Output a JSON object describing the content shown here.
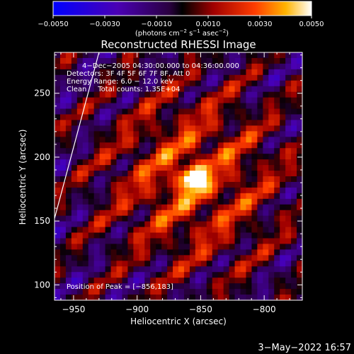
{
  "chart_data": {
    "type": "heatmap",
    "title": "Reconstructed RHESSI Image",
    "xlabel": "Heliocentric X (arcsec)",
    "ylabel": "Heliocentric Y (arcsec)",
    "xlim": [
      -965,
      -770
    ],
    "ylim": [
      88,
      282
    ],
    "x_ticks": [
      -950,
      -900,
      -850,
      -800
    ],
    "y_ticks": [
      100,
      150,
      200,
      250
    ],
    "x_tick_labels": [
      "−950",
      "−900",
      "−850",
      "−800"
    ],
    "y_tick_labels": [
      "100",
      "150",
      "200",
      "250"
    ],
    "colorbar": {
      "range": [
        -0.005,
        0.005
      ],
      "ticks": [
        -0.005,
        -0.003,
        -0.001,
        0.001,
        0.003,
        0.005
      ],
      "tick_labels": [
        "−0.0050",
        "−0.0030",
        "−0.0010",
        "0.0010",
        "0.0030",
        "0.0050"
      ],
      "unit_prefix": "(photons cm",
      "unit_exp1": "−2",
      "unit_mid": " s",
      "unit_exp2": "−1",
      "unit_mid2": " asec",
      "unit_exp3": "−2",
      "unit_suffix": ")"
    },
    "annotations": [
      "4−Dec−2005 04:30:00.000 to 04:36:00.000",
      "Detectors: 3F 4F 5F 6F 7F 8F, Att 0",
      "Energy Range: 6.0 − 12.0 keV",
      "Clean     Total counts: 1.35E+04"
    ],
    "peak_label": "Position of Peak = [−856,183]",
    "peak": [
      -856,
      183
    ],
    "peak_value": 0.005,
    "limb": [
      [
        -965,
        152
      ],
      [
        -930,
        282
      ]
    ],
    "grid": false
  },
  "footer": {
    "date_stamp": "3−May−2022 16:57"
  }
}
